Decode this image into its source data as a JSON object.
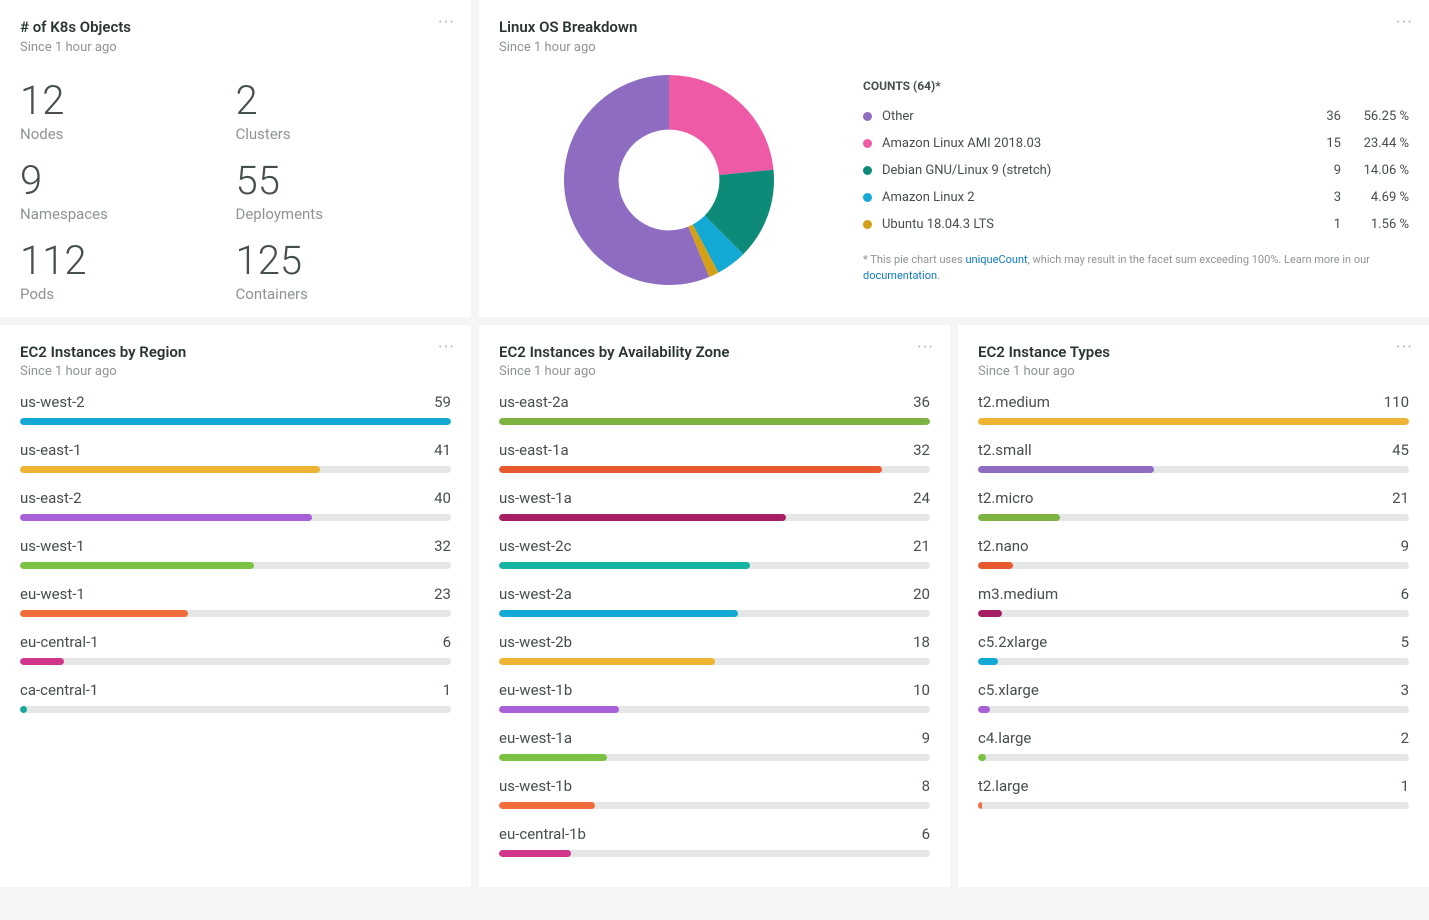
{
  "panels": {
    "k8s": {
      "title": "# of K8s Objects",
      "subtitle": "Since 1 hour ago",
      "stats": [
        {
          "value": "12",
          "label": "Nodes"
        },
        {
          "value": "2",
          "label": "Clusters"
        },
        {
          "value": "9",
          "label": "Namespaces"
        },
        {
          "value": "55",
          "label": "Deployments"
        },
        {
          "value": "112",
          "label": "Pods"
        },
        {
          "value": "125",
          "label": "Containers"
        }
      ]
    },
    "os": {
      "title": "Linux OS Breakdown",
      "subtitle": "Since 1 hour ago",
      "legend_title": "COUNTS (64)*",
      "donut": {
        "size": 210,
        "inner_ratio": 0.48,
        "background": "#ffffff"
      },
      "items": [
        {
          "label": "Other",
          "count": 36,
          "pct": "56.25 %",
          "color": "#8e6cc2"
        },
        {
          "label": "Amazon Linux AMI 2018.03",
          "count": 15,
          "pct": "23.44 %",
          "color": "#ef5aa7"
        },
        {
          "label": "Debian GNU/Linux 9 (stretch)",
          "count": 9,
          "pct": "14.06 %",
          "color": "#0d8b78"
        },
        {
          "label": "Amazon Linux 2",
          "count": 3,
          "pct": "4.69 %",
          "color": "#14a8d4"
        },
        {
          "label": "Ubuntu 18.04.3 LTS",
          "count": 1,
          "pct": "1.56 %",
          "color": "#d4a017"
        }
      ],
      "footnote_prefix": "* This pie chart uses ",
      "footnote_link1": "uniqueCount",
      "footnote_mid": ", which may result in the facet sum exceeding 100%. Learn more in our ",
      "footnote_link2": "documentation",
      "footnote_suffix": "."
    },
    "region": {
      "title": "EC2 Instances by Region",
      "subtitle": "Since 1 hour ago",
      "max": 59,
      "items": [
        {
          "label": "us-west-2",
          "value": 59,
          "color": "#14a8d4"
        },
        {
          "label": "us-east-1",
          "value": 41,
          "color": "#edb434"
        },
        {
          "label": "us-east-2",
          "value": 40,
          "color": "#a760d6"
        },
        {
          "label": "us-west-1",
          "value": 32,
          "color": "#7cc242"
        },
        {
          "label": "eu-west-1",
          "value": 23,
          "color": "#f26b3a"
        },
        {
          "label": "eu-central-1",
          "value": 6,
          "color": "#d1368b"
        },
        {
          "label": "ca-central-1",
          "value": 1,
          "color": "#16a79b"
        }
      ]
    },
    "az": {
      "title": "EC2 Instances by Availability Zone",
      "subtitle": "Since 1 hour ago",
      "max": 36,
      "items": [
        {
          "label": "us-east-2a",
          "value": 36,
          "color": "#7cb342"
        },
        {
          "label": "us-east-1a",
          "value": 32,
          "color": "#e65a2e"
        },
        {
          "label": "us-west-1a",
          "value": 24,
          "color": "#a61e63"
        },
        {
          "label": "us-west-2c",
          "value": 21,
          "color": "#14b3a2"
        },
        {
          "label": "us-west-2a",
          "value": 20,
          "color": "#14a8d4"
        },
        {
          "label": "us-west-2b",
          "value": 18,
          "color": "#edb434"
        },
        {
          "label": "eu-west-1b",
          "value": 10,
          "color": "#a760d6"
        },
        {
          "label": "eu-west-1a",
          "value": 9,
          "color": "#7cc242"
        },
        {
          "label": "us-west-1b",
          "value": 8,
          "color": "#f26b3a"
        },
        {
          "label": "eu-central-1b",
          "value": 6,
          "color": "#d1368b"
        }
      ]
    },
    "types": {
      "title": "EC2 Instance Types",
      "subtitle": "Since 1 hour ago",
      "max": 110,
      "items": [
        {
          "label": "t2.medium",
          "value": 110,
          "color": "#edb434"
        },
        {
          "label": "t2.small",
          "value": 45,
          "color": "#8e6cc2"
        },
        {
          "label": "t2.micro",
          "value": 21,
          "color": "#7cb342"
        },
        {
          "label": "t2.nano",
          "value": 9,
          "color": "#e65a2e"
        },
        {
          "label": "m3.medium",
          "value": 6,
          "color": "#a61e63"
        },
        {
          "label": "c5.2xlarge",
          "value": 5,
          "color": "#14a8d4"
        },
        {
          "label": "c5.xlarge",
          "value": 3,
          "color": "#a760d6"
        },
        {
          "label": "c4.large",
          "value": 2,
          "color": "#7cc242"
        },
        {
          "label": "t2.large",
          "value": 1,
          "color": "#f26b3a"
        }
      ]
    }
  }
}
